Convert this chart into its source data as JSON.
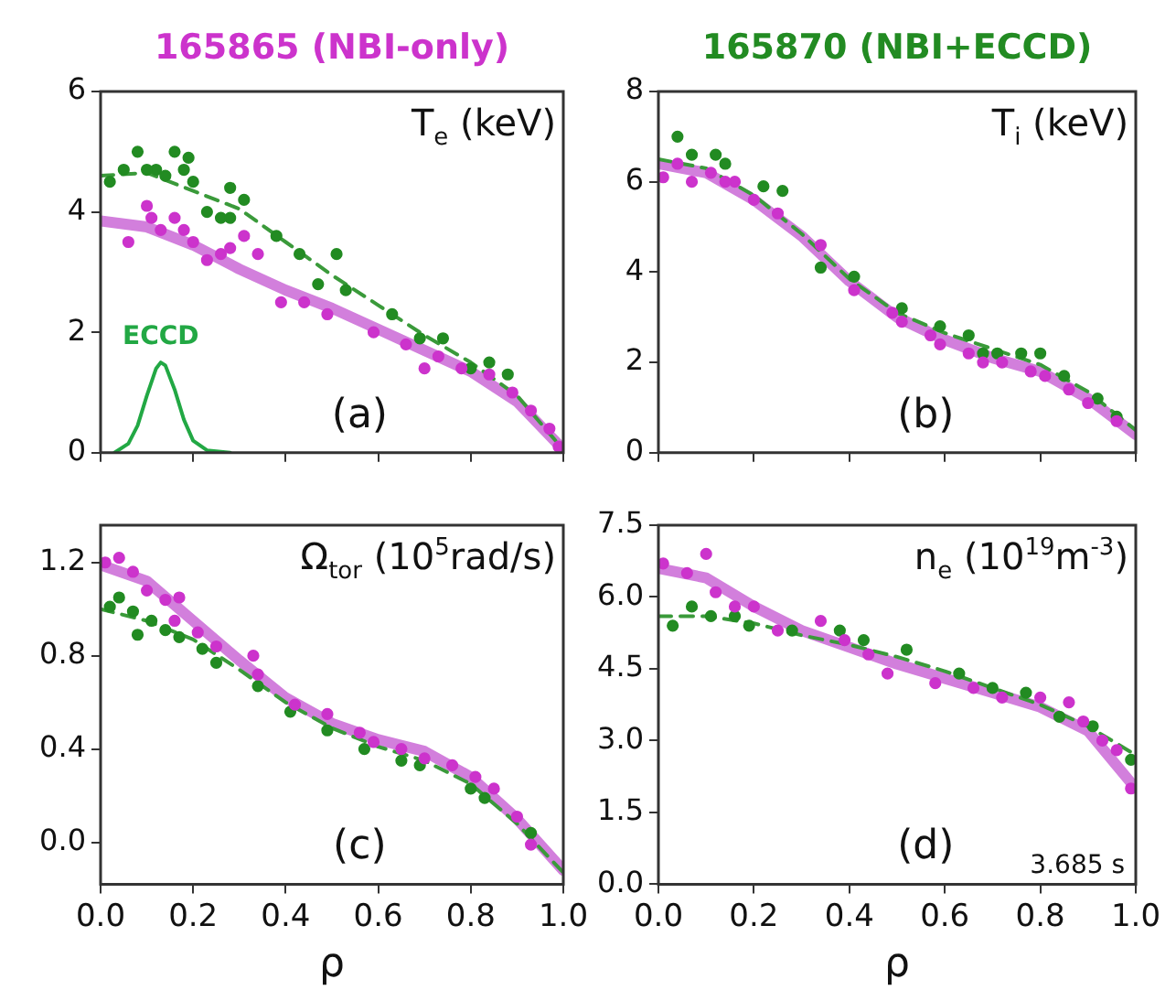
{
  "chart_data": [
    {
      "type": "scatter",
      "legend": "top",
      "marker": "circle",
      "tick_labels": "y",
      "xlim": [
        0,
        1
      ],
      "ylim": [
        0,
        6
      ],
      "xticks": [
        0,
        0.2,
        0.4,
        0.6,
        0.8,
        1
      ],
      "yticks": [
        0,
        2,
        4,
        6
      ],
      "annotations": [
        "T$_{e}$ (keV)",
        "(a)"
      ],
      "series": [
        {
          "name": "165865 (NBI-only)",
          "color": "#cc33cc",
          "x": [
            0.06,
            0.1,
            0.11,
            0.13,
            0.16,
            0.18,
            0.2,
            0.23,
            0.26,
            0.28,
            0.31,
            0.34,
            0.39,
            0.44,
            0.49,
            0.59,
            0.66,
            0.7,
            0.73,
            0.78,
            0.84,
            0.89,
            0.93,
            0.97,
            0.99
          ],
          "values": [
            3.5,
            4.1,
            3.9,
            3.7,
            3.9,
            3.7,
            3.5,
            3.2,
            3.3,
            3.4,
            3.6,
            3.3,
            2.5,
            2.5,
            2.3,
            2.0,
            1.8,
            1.4,
            1.6,
            1.4,
            1.3,
            1.0,
            0.7,
            0.4,
            0.1
          ]
        },
        {
          "color": "#228b22",
          "x": [
            0.02,
            0.05,
            0.08,
            0.1,
            0.12,
            0.14,
            0.16,
            0.18,
            0.19,
            0.2,
            0.23,
            0.26,
            0.28,
            0.28,
            0.31,
            0.38,
            0.43,
            0.47,
            0.51,
            0.53,
            0.63,
            0.69,
            0.74,
            0.8,
            0.84,
            0.88
          ],
          "values": [
            4.5,
            4.7,
            5.0,
            4.7,
            4.7,
            4.6,
            5.0,
            4.7,
            4.9,
            4.5,
            4.0,
            3.9,
            3.9,
            4.4,
            4.2,
            3.6,
            3.3,
            2.8,
            3.3,
            2.7,
            2.3,
            1.9,
            1.9,
            1.4,
            1.5,
            1.3
          ]
        },
        {
          "type": "line",
          "marker": "none",
          "line_style": "solid",
          "color": "#d27fdc",
          "x": [
            0,
            0.1,
            0.2,
            0.3,
            0.4,
            0.5,
            0.6,
            0.7,
            0.8,
            0.9,
            1
          ],
          "values": [
            3.85,
            3.75,
            3.45,
            3.05,
            2.7,
            2.4,
            2.05,
            1.7,
            1.35,
            0.85,
            0.05
          ]
        },
        {
          "type": "line",
          "marker": "none",
          "line_style": "dashed",
          "color": "#3a9a3a",
          "x": [
            0,
            0.1,
            0.2,
            0.3,
            0.4,
            0.5,
            0.6,
            0.7,
            0.8,
            0.9,
            1
          ],
          "values": [
            4.6,
            4.65,
            4.35,
            4.05,
            3.5,
            2.95,
            2.45,
            1.95,
            1.5,
            0.95,
            0.05
          ]
        },
        {
          "type": "line",
          "name": "ECCD",
          "marker": "none",
          "line_style": "solid",
          "color": "#22a844",
          "x": [
            0.03,
            0.06,
            0.08,
            0.1,
            0.12,
            0.13,
            0.14,
            0.16,
            0.18,
            0.2,
            0.23,
            0.28
          ],
          "values": [
            0,
            0.15,
            0.45,
            0.95,
            1.4,
            1.5,
            1.45,
            1.05,
            0.55,
            0.2,
            0.04,
            0
          ]
        }
      ]
    },
    {
      "type": "scatter",
      "legend": "top",
      "marker": "circle",
      "tick_labels": "y",
      "xlim": [
        0,
        1
      ],
      "ylim": [
        0,
        8
      ],
      "xticks": [
        0,
        0.2,
        0.4,
        0.6,
        0.8,
        1
      ],
      "yticks": [
        0,
        2,
        4,
        6,
        8
      ],
      "annotations": [
        "T$_{i}$ (keV)",
        "(b)"
      ],
      "series": [
        {
          "color": "#cc33cc",
          "x": [
            0.01,
            0.04,
            0.07,
            0.11,
            0.14,
            0.16,
            0.2,
            0.25,
            0.34,
            0.41,
            0.49,
            0.51,
            0.57,
            0.59,
            0.65,
            0.68,
            0.72,
            0.78,
            0.81,
            0.86,
            0.9,
            0.96
          ],
          "values": [
            6.1,
            6.4,
            6.0,
            6.2,
            6.0,
            6.0,
            5.6,
            5.3,
            4.6,
            3.6,
            3.1,
            2.9,
            2.6,
            2.4,
            2.2,
            2.0,
            2.0,
            1.8,
            1.7,
            1.4,
            1.1,
            0.7
          ]
        },
        {
          "name": "165870 (NBI+ECCD)",
          "color": "#228b22",
          "x": [
            0.04,
            0.07,
            0.12,
            0.14,
            0.22,
            0.26,
            0.34,
            0.41,
            0.51,
            0.59,
            0.65,
            0.68,
            0.71,
            0.76,
            0.8,
            0.85,
            0.92,
            0.96
          ],
          "values": [
            7.0,
            6.6,
            6.6,
            6.4,
            5.9,
            5.8,
            4.1,
            3.9,
            3.2,
            2.8,
            2.6,
            2.2,
            2.2,
            2.2,
            2.2,
            1.7,
            1.2,
            0.8
          ]
        },
        {
          "type": "line",
          "marker": "none",
          "line_style": "solid",
          "color": "#d27fdc",
          "x": [
            0,
            0.1,
            0.2,
            0.3,
            0.4,
            0.5,
            0.6,
            0.7,
            0.8,
            0.9,
            1
          ],
          "values": [
            6.4,
            6.2,
            5.6,
            4.8,
            3.8,
            3.0,
            2.5,
            2.1,
            1.8,
            1.2,
            0.4
          ]
        },
        {
          "type": "line",
          "marker": "none",
          "line_style": "dashed",
          "color": "#3a9a3a",
          "x": [
            0,
            0.1,
            0.2,
            0.3,
            0.4,
            0.5,
            0.6,
            0.7,
            0.8,
            0.9,
            1
          ],
          "values": [
            6.5,
            6.3,
            5.7,
            4.85,
            3.85,
            3.1,
            2.65,
            2.3,
            1.95,
            1.35,
            0.5
          ]
        }
      ]
    },
    {
      "type": "scatter",
      "marker": "circle",
      "xlabel": "ρ",
      "xlim": [
        0,
        1
      ],
      "ylim": [
        -0.18,
        1.36
      ],
      "xticks": [
        {
          "value": 0,
          "label": "0.0"
        },
        {
          "value": 0.2,
          "label": "0.2"
        },
        {
          "value": 0.4,
          "label": "0.4"
        },
        {
          "value": 0.6,
          "label": "0.6"
        },
        {
          "value": 0.8,
          "label": "0.8"
        },
        {
          "value": 1,
          "label": "1.0"
        }
      ],
      "yticks": [
        {
          "value": 0,
          "label": "0.0"
        },
        0.4,
        0.8,
        1.2
      ],
      "annotations": [
        "Ω$_{tor}$ (10$^{5}$rad/s)",
        "(c)"
      ],
      "series": [
        {
          "color": "#cc33cc",
          "x": [
            0.01,
            0.04,
            0.07,
            0.1,
            0.14,
            0.16,
            0.17,
            0.21,
            0.25,
            0.33,
            0.34,
            0.42,
            0.49,
            0.56,
            0.59,
            0.65,
            0.7,
            0.76,
            0.81,
            0.85,
            0.9,
            0.93
          ],
          "values": [
            1.2,
            1.22,
            1.16,
            1.08,
            1.04,
            0.95,
            1.05,
            0.9,
            0.84,
            0.8,
            0.72,
            0.59,
            0.55,
            0.47,
            0.43,
            0.4,
            0.36,
            0.33,
            0.28,
            0.23,
            0.11,
            -0.01
          ]
        },
        {
          "color": "#228b22",
          "x": [
            0.02,
            0.04,
            0.07,
            0.08,
            0.11,
            0.14,
            0.17,
            0.22,
            0.25,
            0.34,
            0.41,
            0.49,
            0.57,
            0.65,
            0.69,
            0.8,
            0.83,
            0.93
          ],
          "values": [
            1.01,
            1.05,
            0.99,
            0.89,
            0.95,
            0.91,
            0.88,
            0.83,
            0.77,
            0.67,
            0.56,
            0.48,
            0.4,
            0.35,
            0.33,
            0.23,
            0.19,
            0.04
          ]
        },
        {
          "type": "line",
          "marker": "none",
          "line_style": "solid",
          "color": "#d27fdc",
          "x": [
            0,
            0.1,
            0.2,
            0.3,
            0.4,
            0.5,
            0.6,
            0.7,
            0.8,
            0.9,
            1
          ],
          "values": [
            1.19,
            1.12,
            0.95,
            0.78,
            0.62,
            0.51,
            0.44,
            0.39,
            0.28,
            0.1,
            -0.12
          ]
        },
        {
          "type": "line",
          "marker": "none",
          "line_style": "dashed",
          "color": "#3a9a3a",
          "x": [
            0,
            0.1,
            0.2,
            0.3,
            0.4,
            0.5,
            0.6,
            0.7,
            0.8,
            0.9,
            1
          ],
          "values": [
            1.0,
            0.95,
            0.87,
            0.74,
            0.6,
            0.49,
            0.41,
            0.35,
            0.25,
            0.08,
            -0.13
          ]
        }
      ]
    },
    {
      "type": "scatter",
      "marker": "circle",
      "xlabel": "ρ",
      "xlim": [
        0,
        1
      ],
      "ylim": [
        0,
        7.5
      ],
      "xticks": [
        {
          "value": 0,
          "label": "0.0"
        },
        {
          "value": 0.2,
          "label": "0.2"
        },
        {
          "value": 0.4,
          "label": "0.4"
        },
        {
          "value": 0.6,
          "label": "0.6"
        },
        {
          "value": 0.8,
          "label": "0.8"
        },
        {
          "value": 1,
          "label": "1.0"
        }
      ],
      "yticks": [
        {
          "value": 0,
          "label": "0.0"
        },
        1.5,
        {
          "value": 3,
          "label": "3.0"
        },
        4.5,
        {
          "value": 6,
          "label": "6.0"
        },
        7.5
      ],
      "annotations": [
        "n$_{e}$ (10$^{19}$m$^{-3}$)",
        "(d)",
        "3.685 s"
      ],
      "series": [
        {
          "color": "#cc33cc",
          "x": [
            0.01,
            0.06,
            0.1,
            0.12,
            0.16,
            0.2,
            0.25,
            0.34,
            0.39,
            0.44,
            0.48,
            0.58,
            0.66,
            0.72,
            0.8,
            0.86,
            0.89,
            0.93,
            0.96,
            0.99
          ],
          "values": [
            6.7,
            6.5,
            6.9,
            6.1,
            5.8,
            5.8,
            5.3,
            5.5,
            5.1,
            4.8,
            4.4,
            4.2,
            4.1,
            3.9,
            3.9,
            3.8,
            3.4,
            3.0,
            2.8,
            2.0
          ]
        },
        {
          "color": "#228b22",
          "x": [
            0.03,
            0.07,
            0.11,
            0.16,
            0.19,
            0.28,
            0.38,
            0.43,
            0.52,
            0.63,
            0.7,
            0.77,
            0.84,
            0.91,
            0.99
          ],
          "values": [
            5.4,
            5.8,
            5.6,
            5.6,
            5.4,
            5.3,
            5.3,
            5.1,
            4.9,
            4.4,
            4.1,
            4.0,
            3.5,
            3.3,
            2.6
          ]
        },
        {
          "type": "line",
          "marker": "none",
          "line_style": "solid",
          "color": "#d27fdc",
          "x": [
            0,
            0.1,
            0.2,
            0.3,
            0.4,
            0.5,
            0.6,
            0.7,
            0.8,
            0.9,
            1
          ],
          "values": [
            6.6,
            6.4,
            5.8,
            5.3,
            4.95,
            4.6,
            4.3,
            4.0,
            3.7,
            3.2,
            2.0
          ]
        },
        {
          "type": "line",
          "marker": "none",
          "line_style": "dashed",
          "color": "#3a9a3a",
          "x": [
            0,
            0.1,
            0.2,
            0.3,
            0.4,
            0.5,
            0.6,
            0.7,
            0.8,
            0.9,
            1
          ],
          "values": [
            5.6,
            5.6,
            5.45,
            5.2,
            5.0,
            4.75,
            4.45,
            4.1,
            3.75,
            3.3,
            2.7
          ]
        }
      ]
    }
  ]
}
